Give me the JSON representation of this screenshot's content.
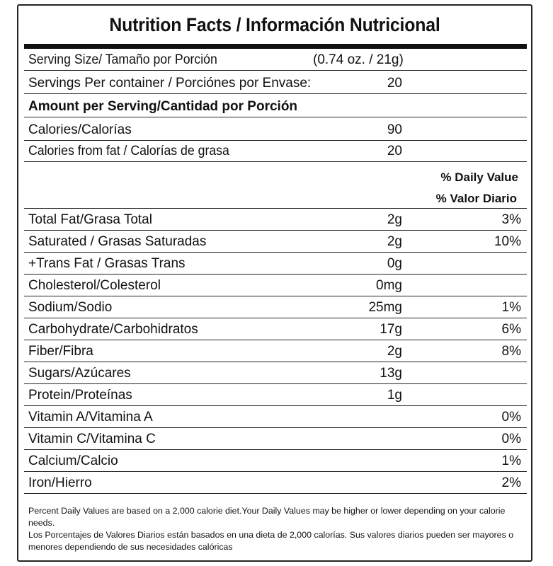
{
  "title": "Nutrition Facts / Información Nutricional",
  "serving_size": {
    "label": "Serving Size/ Tamaño por Porción",
    "value": "(0.74 oz. / 21g)"
  },
  "servings_per_container": {
    "label": "Servings Per container / Porciónes por Envase:",
    "value": "20"
  },
  "amount_header": "Amount per Serving/Cantidad por Porción",
  "calories": {
    "label": "Calories/Calorías",
    "value": "90"
  },
  "calories_fat": {
    "label": "Calories from fat / Calorías de grasa",
    "value": "20"
  },
  "dv_header": {
    "en": "% Daily Value",
    "es": "% Valor Diario"
  },
  "nutrients": [
    {
      "label": "Total Fat/Grasa Total",
      "amount": "2g",
      "dv": "3%"
    },
    {
      "label": "Saturated / Grasas Saturadas",
      "amount": "2g",
      "dv": "10%"
    },
    {
      "label": "+Trans Fat / Grasas Trans",
      "amount": "0g",
      "dv": ""
    },
    {
      "label": "Cholesterol/Colesterol",
      "amount": "0mg",
      "dv": ""
    },
    {
      "label": "Sodium/Sodio",
      "amount": "25mg",
      "dv": "1%"
    },
    {
      "label": "Carbohydrate/Carbohidratos",
      "amount": "17g",
      "dv": "6%"
    },
    {
      "label": "Fiber/Fibra",
      "amount": "2g",
      "dv": "8%"
    },
    {
      "label": "Sugars/Azúcares",
      "amount": "13g",
      "dv": ""
    },
    {
      "label": "Protein/Proteínas",
      "amount": "1g",
      "dv": ""
    },
    {
      "label": "Vitamin A/Vitamina A",
      "amount": "",
      "dv": "0%"
    },
    {
      "label": "Vitamin C/Vitamina C",
      "amount": "",
      "dv": "0%"
    },
    {
      "label": "Calcium/Calcio",
      "amount": "",
      "dv": "1%"
    },
    {
      "label": "Iron/Hierro",
      "amount": "",
      "dv": "2%"
    }
  ],
  "footnotes": {
    "en": "Percent Daily Values are based on a 2,000 calorie diet.Your Daily Values may be higher or lower depending on your calorie needs.",
    "es": "Los Porcentajes de Valores Diarios están basados en una dieta de 2,000 calorías. Sus valores diarios pueden ser mayores o menores dependiendo de sus necesidades calóricas"
  }
}
